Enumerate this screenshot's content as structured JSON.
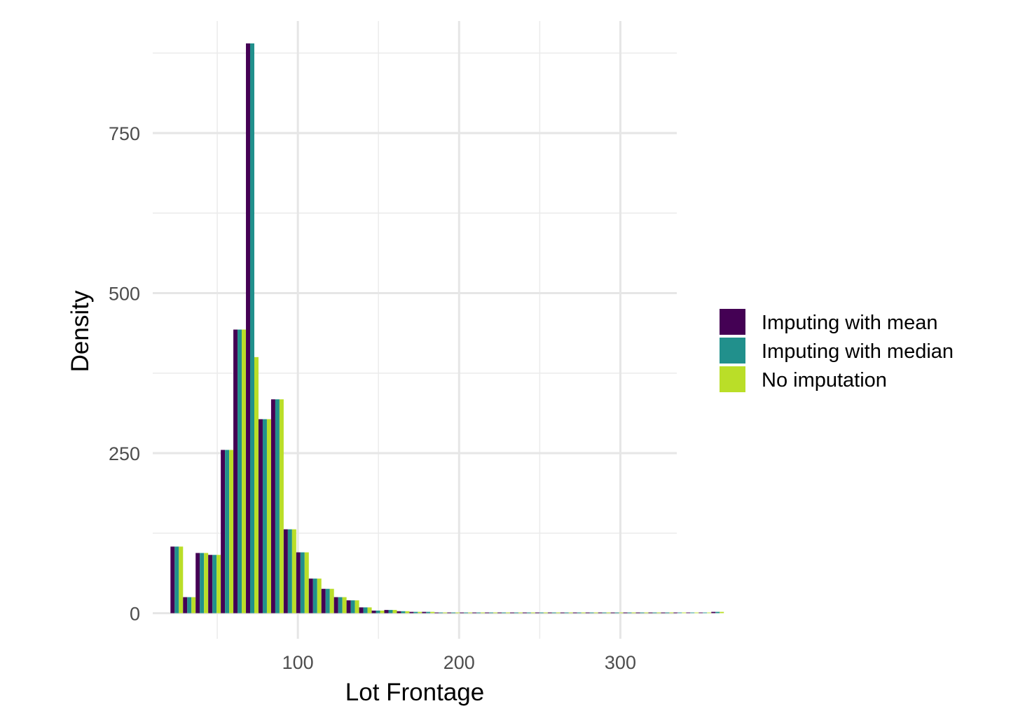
{
  "chart_data": {
    "type": "bar",
    "xlabel": "Lot Frontage",
    "ylabel": "Density",
    "xlim": [
      10,
      335
    ],
    "ylim": [
      -40,
      925
    ],
    "x_ticks": [
      100,
      200,
      300
    ],
    "y_ticks": [
      0,
      250,
      500,
      750
    ],
    "x_tick_labels": [
      "100",
      "200",
      "300"
    ],
    "y_tick_labels": [
      "0",
      "250",
      "500",
      "750"
    ],
    "grid": true,
    "legend_position": "right",
    "bin_start": 21,
    "bin_width": 7.8,
    "series": [
      {
        "name": "Imputing with mean",
        "color": "#440154",
        "values": [
          104,
          25,
          94,
          91,
          255,
          443,
          890,
          303,
          334,
          131,
          95,
          54,
          38,
          25,
          20,
          9,
          4,
          5,
          3,
          2,
          2,
          1,
          1,
          1,
          1,
          1,
          1,
          1,
          1,
          1,
          1,
          1,
          1,
          1,
          1,
          1,
          1,
          1,
          1,
          1,
          1,
          1,
          1,
          2
        ]
      },
      {
        "name": "Imputing with median",
        "color": "#21908C",
        "values": [
          104,
          25,
          94,
          91,
          255,
          443,
          890,
          303,
          334,
          131,
          95,
          54,
          38,
          25,
          20,
          9,
          4,
          5,
          3,
          2,
          2,
          1,
          1,
          1,
          1,
          1,
          1,
          1,
          1,
          1,
          1,
          1,
          1,
          1,
          1,
          1,
          1,
          1,
          1,
          1,
          1,
          1,
          1,
          2
        ]
      },
      {
        "name": "No imputation",
        "color": "#BADE28",
        "values": [
          104,
          25,
          94,
          91,
          255,
          443,
          400,
          303,
          334,
          131,
          95,
          54,
          38,
          25,
          20,
          9,
          4,
          5,
          3,
          2,
          2,
          1,
          1,
          1,
          1,
          1,
          1,
          1,
          1,
          1,
          1,
          1,
          1,
          1,
          1,
          1,
          1,
          1,
          1,
          1,
          1,
          1,
          1,
          2
        ]
      }
    ]
  }
}
